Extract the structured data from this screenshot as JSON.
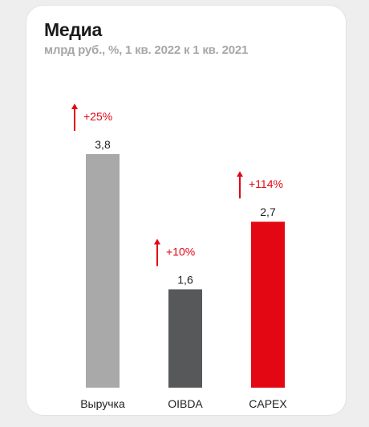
{
  "chart_data": {
    "type": "bar",
    "title": "Медиа",
    "subtitle": "млрд руб., %, 1 кв. 2022 к 1 кв. 2021",
    "categories": [
      "Выручка",
      "OIBDA",
      "CAPEX"
    ],
    "values": [
      3.8,
      1.6,
      2.7
    ],
    "value_labels": [
      "3,8",
      "1,6",
      "2,7"
    ],
    "changes": [
      "+25%",
      "+10%",
      "+114%"
    ],
    "change_direction": [
      "up",
      "up",
      "up"
    ],
    "bar_colors": [
      "#a9a9a9",
      "#57585a",
      "#e30613"
    ],
    "accent_color": "#e30613",
    "ylim": [
      0,
      3.8
    ],
    "grid": false,
    "legend": "none"
  }
}
